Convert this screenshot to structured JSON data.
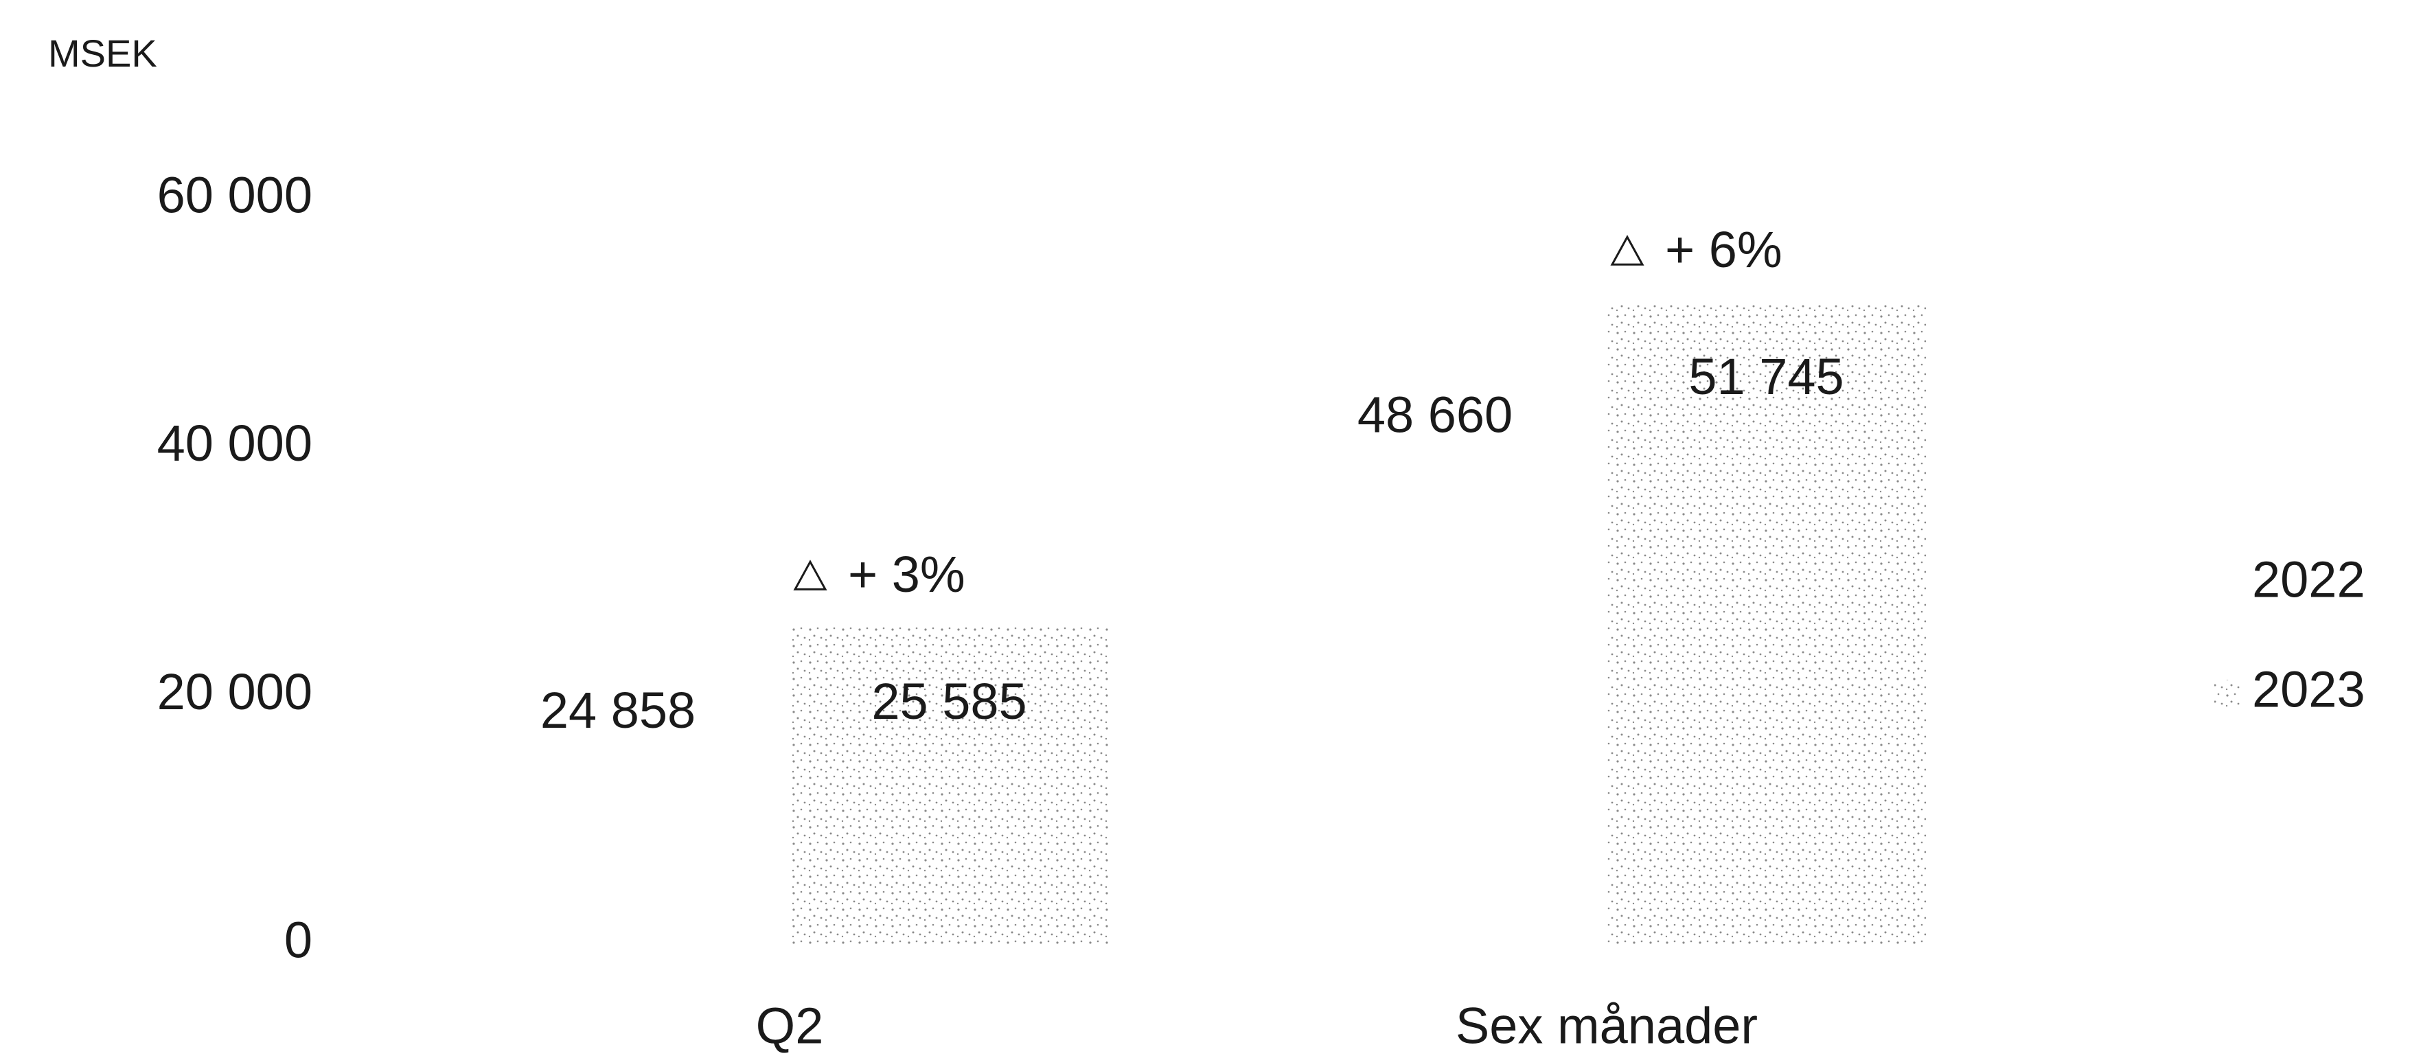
{
  "chart_data": {
    "type": "bar",
    "y_label": "MSEK",
    "categories": [
      "Q2",
      "Sex månader"
    ],
    "series": [
      {
        "name": "2022",
        "color": "#ffffff",
        "values": [
          24858,
          48660
        ],
        "value_labels": [
          "24 858",
          "48 660"
        ]
      },
      {
        "name": "2023",
        "color": "#8a8a8a",
        "values": [
          25585,
          51745
        ],
        "value_labels": [
          "25 585",
          "51 745"
        ]
      }
    ],
    "annotations": [
      "+ 3%",
      "+ 6%"
    ],
    "ylim": [
      0,
      60000
    ],
    "yticks": [
      0,
      {
        "value": 20000,
        "label": "20 000"
      },
      {
        "value": 40000,
        "label": "40 000"
      },
      {
        "value": 60000,
        "label": "60 000"
      }
    ],
    "grid": false,
    "legend": "right"
  }
}
